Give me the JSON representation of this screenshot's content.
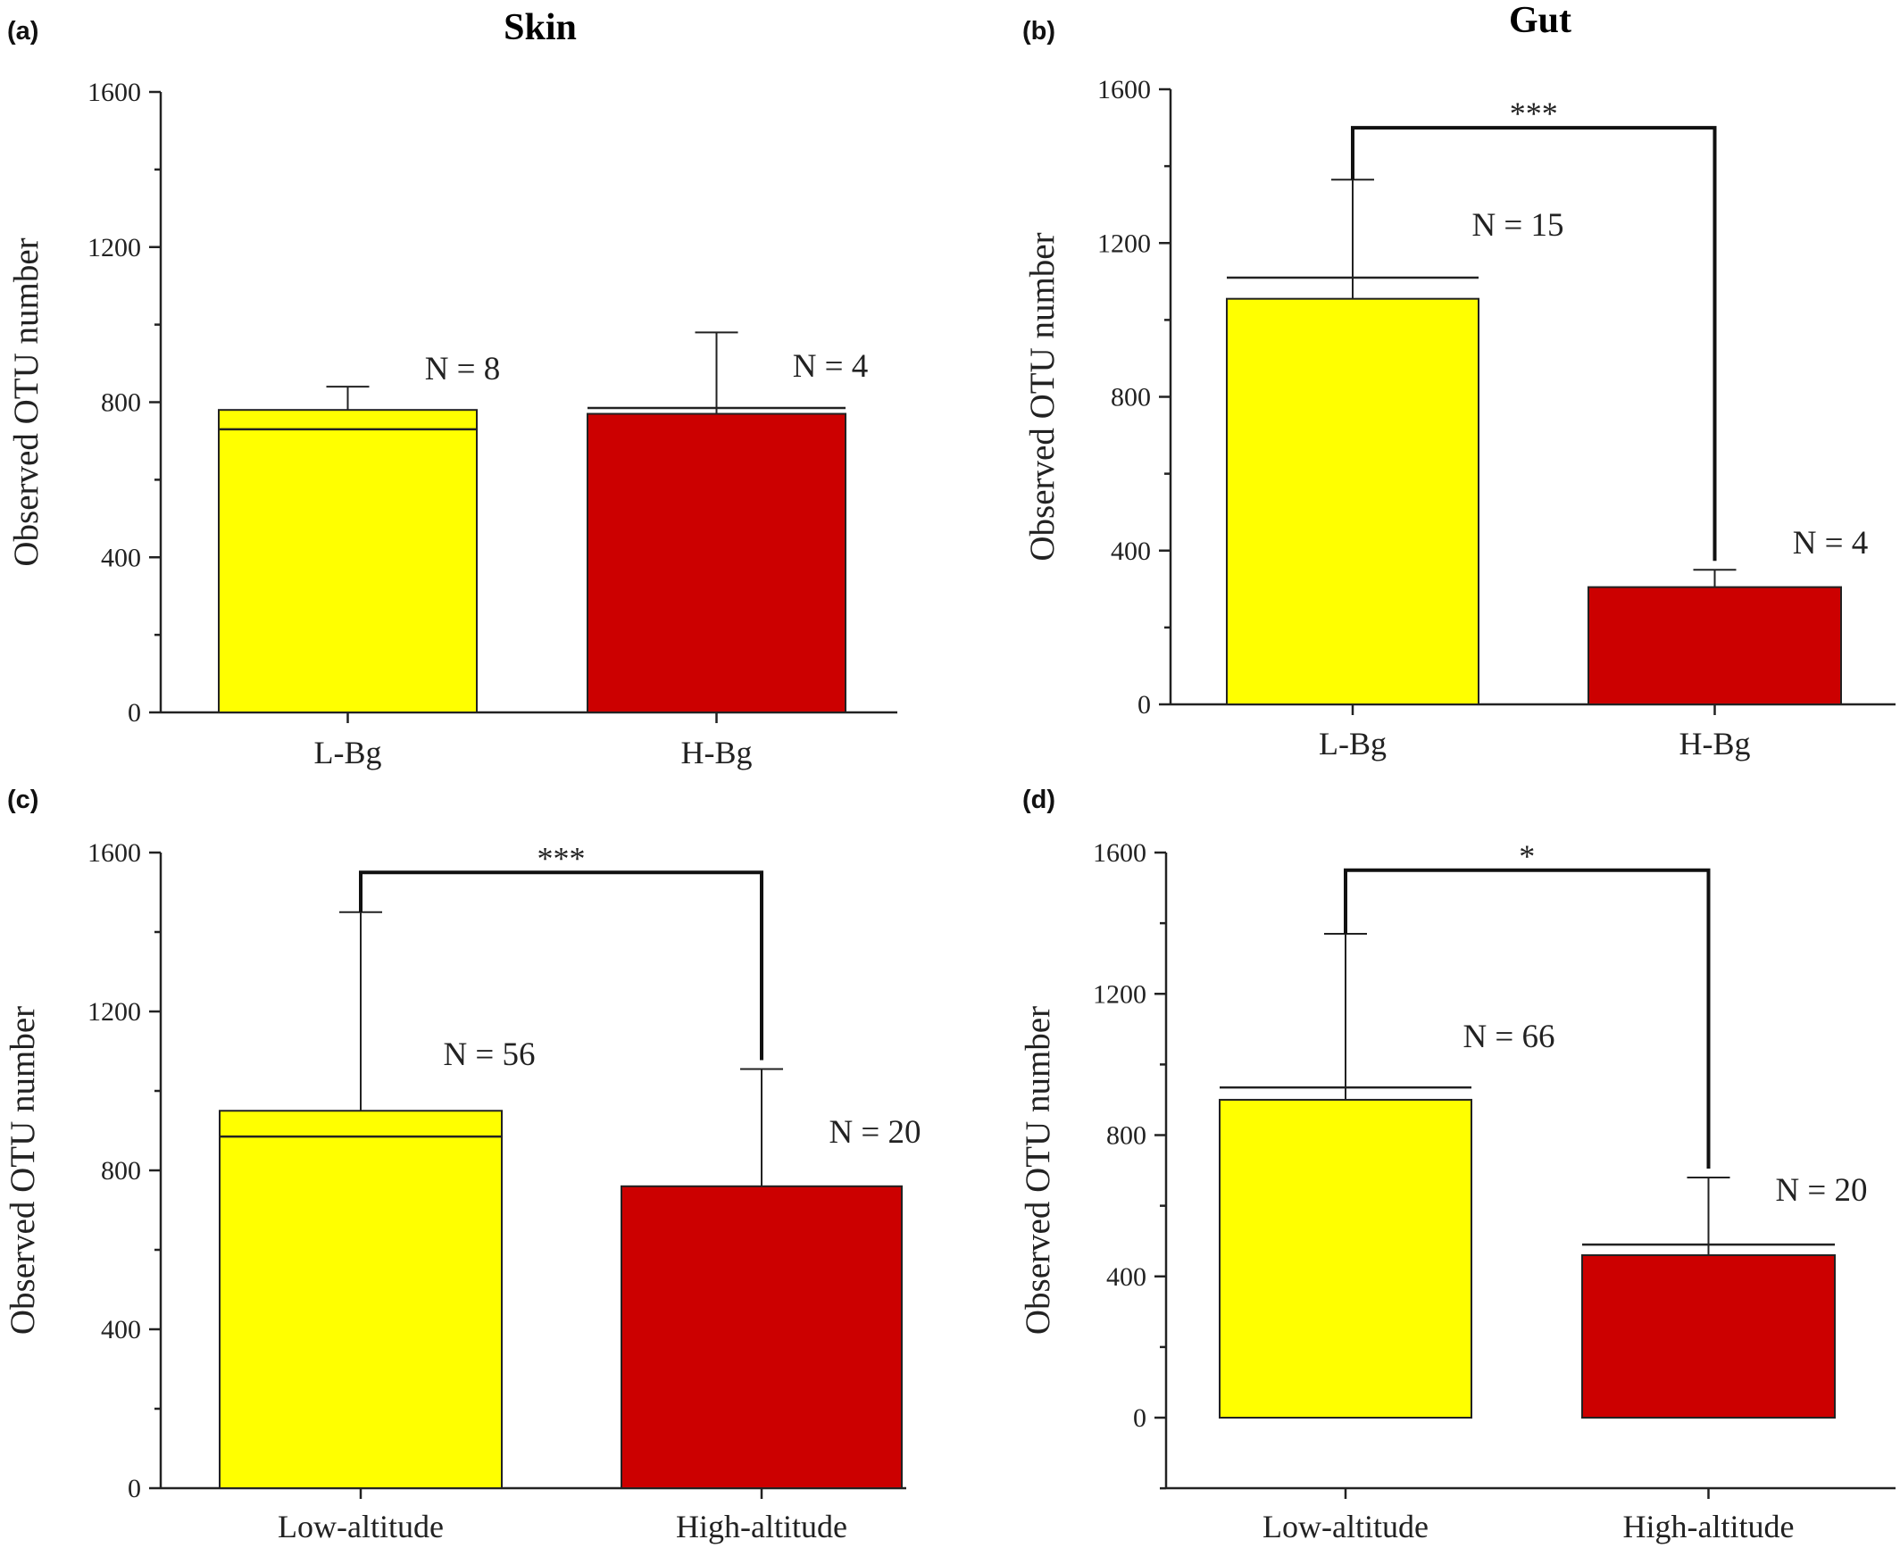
{
  "column_titles": [
    "Skin",
    "Gut"
  ],
  "chart_data": [
    {
      "panel": "(a)",
      "type": "bar",
      "title": "Skin",
      "ylabel": "Observed OTU number",
      "ylim": [
        0,
        1600
      ],
      "yticks": [
        0,
        400,
        800,
        1200,
        1600
      ],
      "categories": [
        "L-Bg",
        "H-Bg"
      ],
      "values": [
        780,
        770
      ],
      "error_upper": [
        840,
        980
      ],
      "reference_lines": [
        730,
        785
      ],
      "colors": [
        "#ffff00",
        "#cc0000"
      ],
      "n_labels": [
        "N = 8",
        "N = 4"
      ],
      "significance": null
    },
    {
      "panel": "(b)",
      "type": "bar",
      "title": "Gut",
      "ylabel": "Observed OTU number",
      "ylim": [
        0,
        1600
      ],
      "yticks": [
        0,
        400,
        800,
        1200,
        1600
      ],
      "categories": [
        "L-Bg",
        "H-Bg"
      ],
      "values": [
        1055,
        305
      ],
      "error_upper": [
        1365,
        350
      ],
      "reference_lines": [
        1110,
        null
      ],
      "colors": [
        "#ffff00",
        "#cc0000"
      ],
      "n_labels": [
        "N = 15",
        "N = 4"
      ],
      "significance": {
        "label": "***",
        "level": 1500
      }
    },
    {
      "panel": "(c)",
      "type": "bar",
      "title": "",
      "ylabel": "Observed OTU number",
      "ylim": [
        0,
        1600
      ],
      "yticks": [
        0,
        400,
        800,
        1200,
        1600
      ],
      "categories": [
        "Low-altitude",
        "High-altitude"
      ],
      "values": [
        950,
        760
      ],
      "error_upper": [
        1450,
        1055
      ],
      "reference_lines": [
        885,
        null
      ],
      "colors": [
        "#ffff00",
        "#cc0000"
      ],
      "n_labels": [
        "N = 56",
        "N = 20"
      ],
      "significance": {
        "label": "***",
        "level": 1550
      }
    },
    {
      "panel": "(d)",
      "type": "bar",
      "title": "",
      "ylabel": "Observed OTU number",
      "ylim": [
        -200,
        1600
      ],
      "yticks": [
        0,
        400,
        800,
        1200,
        1600
      ],
      "categories": [
        "Low-altitude",
        "High-altitude"
      ],
      "values": [
        900,
        460
      ],
      "error_upper": [
        1370,
        680
      ],
      "reference_lines": [
        935,
        490
      ],
      "colors": [
        "#ffff00",
        "#cc0000"
      ],
      "n_labels": [
        "N = 66",
        "N = 20"
      ],
      "significance": {
        "label": "*",
        "level": 1550
      }
    }
  ]
}
